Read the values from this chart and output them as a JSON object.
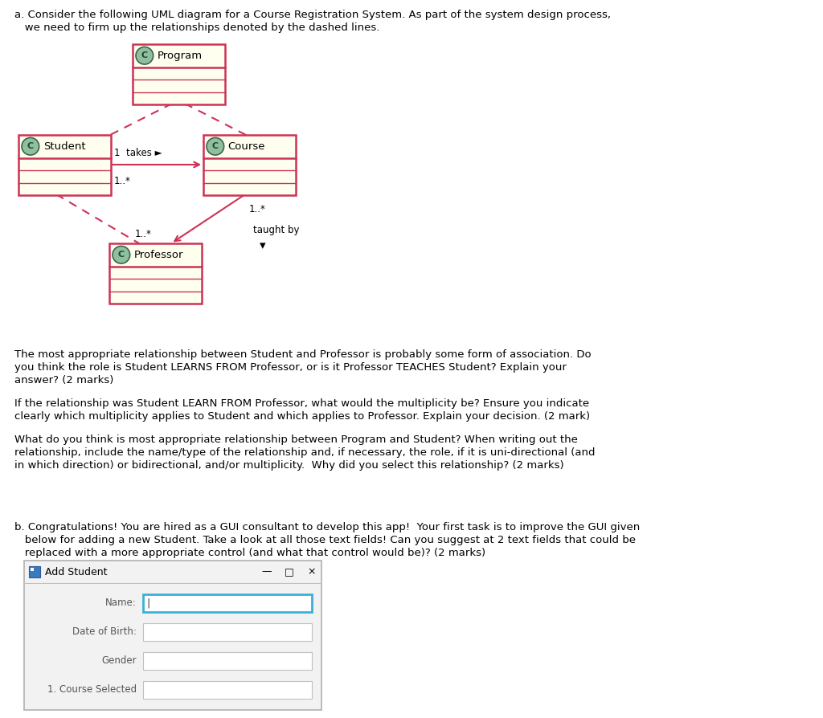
{
  "bg_color": "#ffffff",
  "text_color": "#000000",
  "part_a_line1": "a. Consider the following UML diagram for a Course Registration System. As part of the system design process,",
  "part_a_line2": "   we need to firm up the relationships denoted by the dashed lines.",
  "uml": {
    "box_fill": "#fffff0",
    "box_edge": "#cc3355",
    "circle_fill": "#8fbfa0",
    "circle_edge": "#3a6645",
    "line_color": "#cc3355",
    "dashed_color": "#cc3355"
  },
  "q1_lines": [
    "The most appropriate relationship between Student and Professor is probably some form of association. Do",
    "you think the role is Student LEARNS FROM Professor, or is it Professor TEACHES Student? Explain your",
    "answer? (2 marks)"
  ],
  "q2_lines": [
    "If the relationship was Student LEARN FROM Professor, what would the multiplicity be? Ensure you indicate",
    "clearly which multiplicity applies to Student and which applies to Professor. Explain your decision. (2 mark)"
  ],
  "q3_lines": [
    "What do you think is most appropriate relationship between Program and Student? When writing out the",
    "relationship, include the name/type of the relationship and, if necessary, the role, if it is uni-directional (and",
    "in which direction) or bidirectional, and/or multiplicity.  Why did you select this relationship? (2 marks)"
  ],
  "part_b_line1": "b. Congratulations! You are hired as a GUI consultant to develop this app!  Your first task is to improve the GUI given",
  "part_b_line2": "   below for adding a new Student. Take a look at all those text fields! Can you suggest at 2 text fields that could be",
  "part_b_line3": "   replaced with a more appropriate control (and what that control would be)? (2 marks)",
  "gui_title": "Add Student",
  "gui_fields": [
    "Name:",
    "Date of Birth:",
    "Gender",
    "1. Course Selected"
  ],
  "gui_active_field": 0
}
